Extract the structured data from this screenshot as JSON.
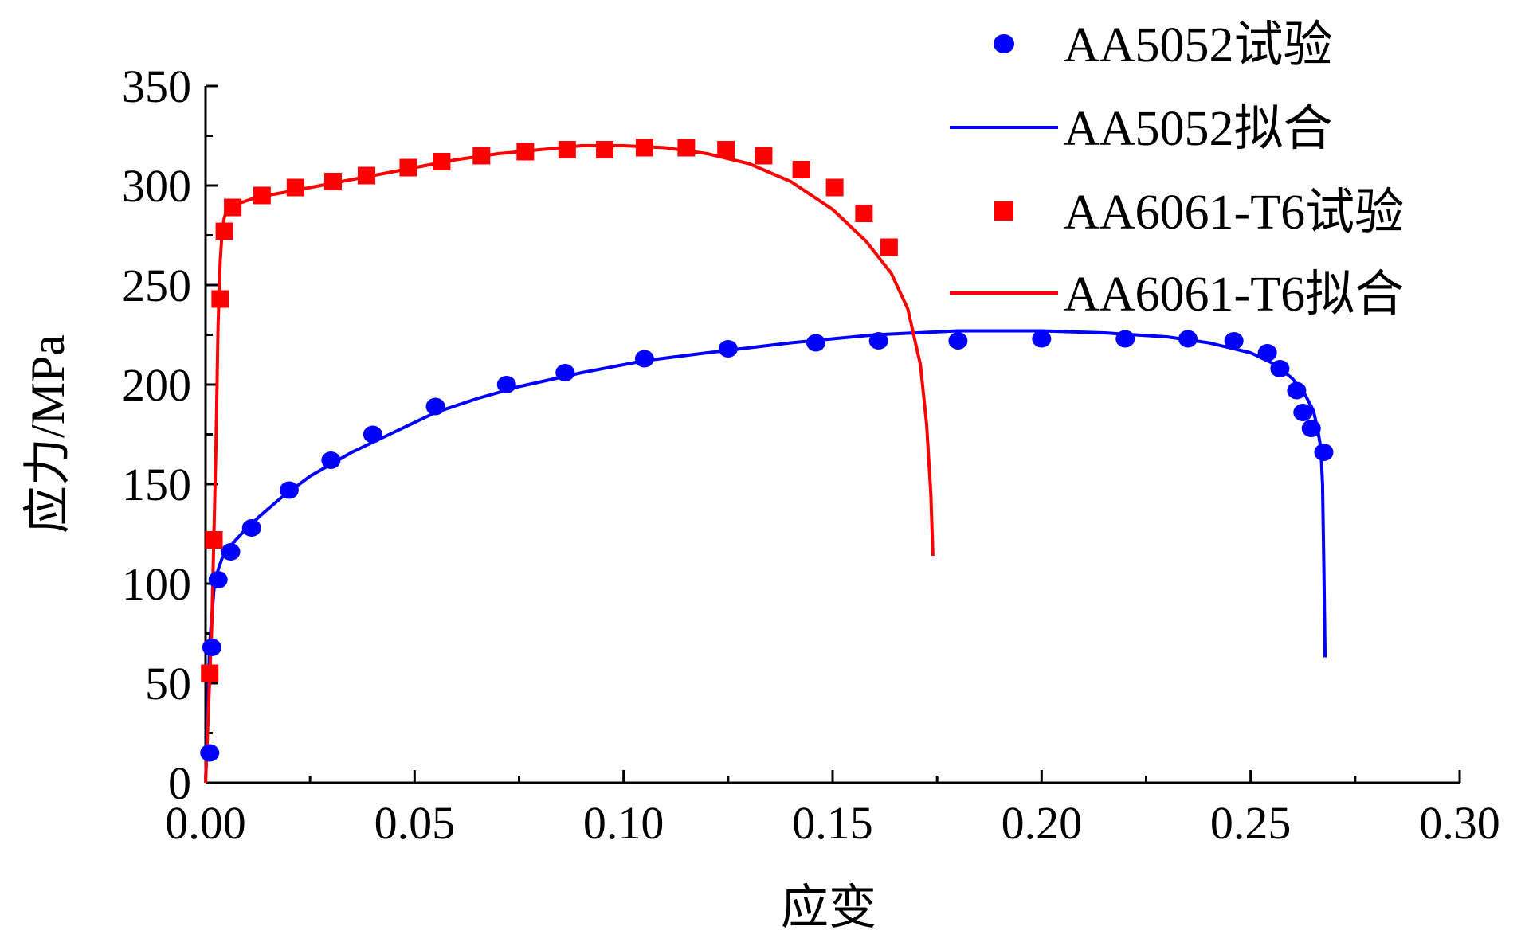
{
  "chart_data": {
    "type": "scatter",
    "xlabel": "应变",
    "ylabel": "应力/MPa",
    "xlim": [
      0,
      0.3
    ],
    "ylim": [
      0,
      350
    ],
    "x_ticks": [
      "0.00",
      "0.05",
      "0.10",
      "0.15",
      "0.20",
      "0.25",
      "0.30"
    ],
    "y_ticks": [
      "0",
      "50",
      "100",
      "150",
      "200",
      "250",
      "300",
      "350"
    ],
    "legend_position": "top-right",
    "series": [
      {
        "name": "AA5052试验",
        "kind": "points",
        "marker": "circle",
        "color": "#0000ff",
        "x": [
          0.001,
          0.0015,
          0.003,
          0.006,
          0.011,
          0.02,
          0.03,
          0.04,
          0.055,
          0.072,
          0.086,
          0.105,
          0.125,
          0.146,
          0.161,
          0.18,
          0.2,
          0.22,
          0.235,
          0.246,
          0.254,
          0.257,
          0.261,
          0.2625,
          0.2645,
          0.2675
        ],
        "y": [
          15,
          68,
          102,
          116,
          128,
          147,
          162,
          175,
          189,
          200,
          206,
          213,
          218,
          221,
          222,
          222,
          223,
          223,
          223,
          222,
          216,
          208,
          197,
          186,
          178,
          166
        ]
      },
      {
        "name": "AA5052拟合",
        "kind": "line",
        "color": "#0000ff",
        "x": [
          0.0,
          0.0005,
          0.001,
          0.002,
          0.003,
          0.004,
          0.006,
          0.009,
          0.013,
          0.018,
          0.025,
          0.035,
          0.045,
          0.055,
          0.065,
          0.075,
          0.09,
          0.105,
          0.12,
          0.14,
          0.16,
          0.18,
          0.2,
          0.215,
          0.23,
          0.24,
          0.25,
          0.256,
          0.26,
          0.263,
          0.265,
          0.266,
          0.2668,
          0.2672,
          0.2675,
          0.2678
        ],
        "y": [
          0,
          35,
          70,
          97,
          107,
          113,
          119,
          126,
          134,
          143,
          154,
          166,
          176,
          186,
          193,
          199,
          206,
          212,
          216,
          221,
          225,
          227,
          227,
          226,
          224,
          221,
          216,
          210,
          203,
          195,
          187,
          178,
          168,
          150,
          110,
          63
        ]
      },
      {
        "name": "AA6061-T6试验",
        "kind": "points",
        "marker": "square",
        "color": "#ff0000",
        "x": [
          0.001,
          0.002,
          0.0035,
          0.0045,
          0.0065,
          0.0135,
          0.0215,
          0.0305,
          0.0385,
          0.0485,
          0.0565,
          0.066,
          0.0765,
          0.0865,
          0.0955,
          0.105,
          0.115,
          0.1245,
          0.1335,
          0.1425,
          0.1505,
          0.1575,
          0.1635
        ],
        "y": [
          55,
          122,
          243,
          277,
          289,
          295,
          299,
          302,
          305,
          309,
          312,
          315,
          317,
          318,
          318,
          319,
          319,
          318,
          315,
          308,
          299,
          286,
          269
        ]
      },
      {
        "name": "AA6061-T6拟合",
        "kind": "line",
        "color": "#ff0000",
        "x": [
          0.0,
          0.0015,
          0.0025,
          0.003,
          0.0035,
          0.004,
          0.0045,
          0.005,
          0.006,
          0.008,
          0.012,
          0.02,
          0.03,
          0.04,
          0.05,
          0.06,
          0.07,
          0.08,
          0.09,
          0.1,
          0.11,
          0.12,
          0.13,
          0.14,
          0.15,
          0.158,
          0.164,
          0.168,
          0.171,
          0.1725,
          0.1735,
          0.174
        ],
        "y": [
          0,
          80,
          170,
          230,
          262,
          278,
          284,
          287,
          289,
          291,
          294,
          297,
          301,
          305,
          309,
          313,
          316,
          318,
          320,
          320,
          319,
          316,
          311,
          302,
          288,
          272,
          256,
          238,
          210,
          180,
          145,
          114
        ]
      }
    ]
  }
}
